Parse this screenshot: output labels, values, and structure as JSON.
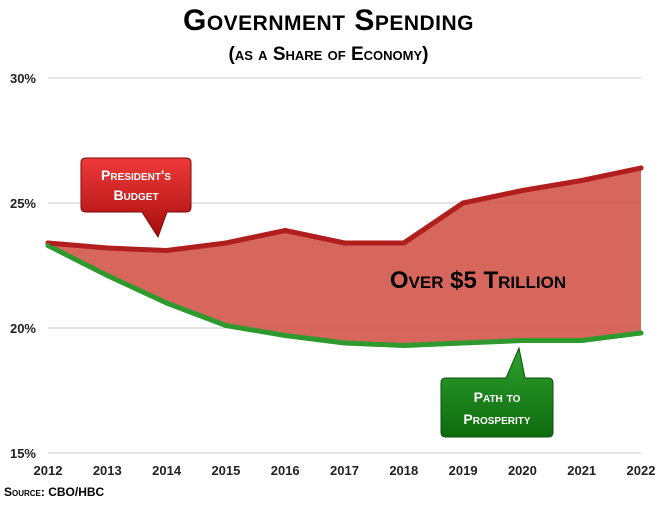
{
  "chart_data": {
    "type": "area",
    "title": "Government Spending",
    "subtitle": "(as a Share of Economy)",
    "source": "Source: CBO/HBC",
    "x": [
      "2012",
      "2013",
      "2014",
      "2015",
      "2016",
      "2017",
      "2018",
      "2019",
      "2020",
      "2021",
      "2022"
    ],
    "ylim": [
      15,
      30
    ],
    "yticks": [
      "15%",
      "20%",
      "25%",
      "30%"
    ],
    "grid": true,
    "series": [
      {
        "name": "President's Budget",
        "color": "#b01e1e",
        "values": [
          23.4,
          23.2,
          23.1,
          23.4,
          23.9,
          23.4,
          23.4,
          25.0,
          25.5,
          25.9,
          26.4
        ]
      },
      {
        "name": "Path to Prosperity",
        "color": "#2e9a2e",
        "values": [
          23.3,
          22.1,
          21.0,
          20.1,
          19.7,
          19.4,
          19.3,
          19.4,
          19.5,
          19.5,
          19.8
        ]
      }
    ],
    "fill_color": "#d45a4e",
    "gap_label": "Over $5 Trillion",
    "callouts": {
      "presidents_budget": [
        "President's",
        "Budget"
      ],
      "path_to_prosperity": [
        "Path to",
        "Prosperity"
      ]
    }
  }
}
